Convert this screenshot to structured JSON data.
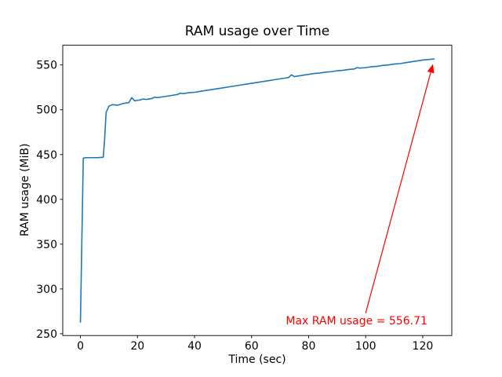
{
  "chart_data": {
    "type": "line",
    "title": "RAM usage over Time",
    "xlabel": "Time (sec)",
    "ylabel": "RAM usage (MiB)",
    "xlim": [
      -6.2,
      130.2
    ],
    "ylim": [
      248,
      572
    ],
    "xticks": [
      0,
      20,
      40,
      60,
      80,
      100,
      120
    ],
    "yticks": [
      250,
      300,
      350,
      400,
      450,
      500,
      550
    ],
    "grid": false,
    "legend": null,
    "series": [
      {
        "name": "RAM usage",
        "color": "#1f77b4",
        "x": [
          0,
          1,
          2,
          4,
          6,
          8,
          8.5,
          9,
          10,
          11,
          12,
          13,
          14,
          15,
          16,
          17,
          18,
          19,
          20,
          21,
          22,
          23,
          24,
          25,
          26,
          27,
          28,
          30,
          32,
          34,
          35,
          36,
          38,
          40,
          42,
          44,
          46,
          48,
          50,
          52,
          54,
          56,
          58,
          60,
          62,
          64,
          66,
          68,
          70,
          72,
          73,
          74,
          75,
          76,
          78,
          80,
          82,
          84,
          86,
          88,
          90,
          92,
          94,
          96,
          97,
          98,
          100,
          102,
          104,
          106,
          108,
          110,
          112,
          114,
          116,
          118,
          120,
          122,
          124
        ],
        "y": [
          263,
          446,
          446.5,
          446.5,
          446.5,
          447,
          468,
          497,
          504,
          505.5,
          505.5,
          505,
          506,
          507,
          507.5,
          508,
          513.5,
          510,
          510.5,
          511,
          512,
          511.5,
          512,
          512.5,
          514,
          513.5,
          514,
          515,
          516,
          517,
          518.5,
          518,
          519,
          519.5,
          520.5,
          521.5,
          522.5,
          523.5,
          524.5,
          525.5,
          526.5,
          527.5,
          528.5,
          529.5,
          530.5,
          531.5,
          532.5,
          533.5,
          534.5,
          535.5,
          536,
          539,
          537,
          537.5,
          538.5,
          539.5,
          540.5,
          541,
          542,
          542.5,
          543.5,
          544,
          545,
          545.5,
          547,
          546.5,
          547,
          548,
          548.5,
          549.5,
          550,
          551,
          551.5,
          552.5,
          553.5,
          554.5,
          555.5,
          556,
          556.71
        ]
      }
    ],
    "annotation": {
      "text": "Max RAM usage = 556.71",
      "color": "#ff0000",
      "text_xy": [
        72,
        259
      ],
      "arrow_from": [
        100,
        273
      ],
      "arrow_to": [
        123.6,
        551
      ]
    }
  }
}
